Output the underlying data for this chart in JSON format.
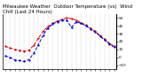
{
  "title": "Milwaukee Weather  Outdoor Temperature (vs)  Wind Chill (Last 24 Hours)",
  "temp_color": "#cc0000",
  "windchill_color": "#0000cc",
  "line_style": "--",
  "marker": ".",
  "grid_color": "#888888",
  "bg_color": "#ffffff",
  "ylim": [
    -15,
    55
  ],
  "yticks": [
    -10,
    0,
    10,
    20,
    30,
    40,
    50
  ],
  "temp_x": [
    0,
    1,
    2,
    3,
    4,
    5,
    6,
    7,
    8,
    9,
    10,
    11,
    12,
    13,
    14,
    15,
    16,
    17,
    18,
    19,
    20,
    21,
    22,
    23
  ],
  "temp_y": [
    14,
    12,
    10,
    9,
    8,
    9,
    15,
    24,
    33,
    39,
    43,
    46,
    48,
    50,
    49,
    47,
    44,
    41,
    37,
    33,
    28,
    23,
    18,
    14
  ],
  "windchill_x": [
    0,
    1,
    2,
    3,
    4,
    5,
    6,
    7,
    8,
    9,
    10,
    11,
    12,
    13,
    14,
    15,
    16,
    17,
    18,
    19,
    20,
    21,
    22,
    23
  ],
  "windchill_y": [
    2,
    0,
    -3,
    -4,
    -5,
    -3,
    5,
    16,
    28,
    37,
    42,
    45,
    47,
    47,
    38,
    45,
    43,
    40,
    36,
    32,
    27,
    22,
    17,
    13
  ],
  "title_fontsize": 4.0,
  "tick_fontsize": 3.0,
  "linewidth": 0.7,
  "markersize": 1.2,
  "figsize": [
    1.6,
    0.87
  ],
  "dpi": 100
}
